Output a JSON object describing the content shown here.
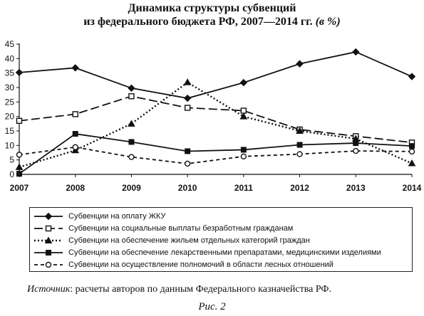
{
  "figure": {
    "title_line1": "Динамика структуры субвенций",
    "title_line2": "из федерального бюджета РФ, 2007—2014 гг.",
    "title_unit": "(в %)",
    "source_label": "Источник",
    "source_text": ": расчеты авторов по данным Федерального казначейства РФ.",
    "caption": "Рис. 2"
  },
  "chart_data": {
    "type": "line",
    "title": "Динамика структуры субвенций из федерального бюджета РФ, 2007—2014 гг. (в %)",
    "x": [
      "2007",
      "2008",
      "2009",
      "2010",
      "2011",
      "2012",
      "2013",
      "2014"
    ],
    "y_ticks": [
      "0",
      "5",
      "10",
      "15",
      "20",
      "25",
      "30",
      "35",
      "40",
      "45"
    ],
    "ylim": [
      0,
      45
    ],
    "grid": false,
    "legend_position": "bottom",
    "series": [
      {
        "name": "Субвенции на оплату ЖКУ",
        "marker": "diamond-filled",
        "dash": "solid",
        "values": [
          35.2,
          36.8,
          29.8,
          26.3,
          31.7,
          38.2,
          42.3,
          33.8
        ]
      },
      {
        "name": "Субвенции на социальные выплаты безработным гражданам",
        "marker": "square-open",
        "dash": "long-dash",
        "values": [
          18.5,
          20.8,
          27.0,
          23.0,
          22.0,
          15.5,
          13.2,
          11.0
        ]
      },
      {
        "name": "Субвенции на обеспечение жильем отдельных категорий граждан",
        "marker": "triangle-filled",
        "dash": "dotted",
        "values": [
          2.5,
          8.3,
          17.5,
          31.8,
          20.0,
          15.0,
          12.3,
          3.8
        ]
      },
      {
        "name": "Субвенции на обеспечение лекарственными препаратами, медицинскими изделиями",
        "marker": "square-filled",
        "dash": "solid",
        "values": [
          0.2,
          14.0,
          11.2,
          8.0,
          8.5,
          10.2,
          10.8,
          9.8
        ]
      },
      {
        "name": "Субвенции на осуществление полномочий в области лесных отношений",
        "marker": "circle-open",
        "dash": "short-dash",
        "values": [
          6.8,
          9.4,
          6.0,
          3.7,
          6.2,
          7.0,
          8.1,
          7.9
        ]
      }
    ]
  }
}
